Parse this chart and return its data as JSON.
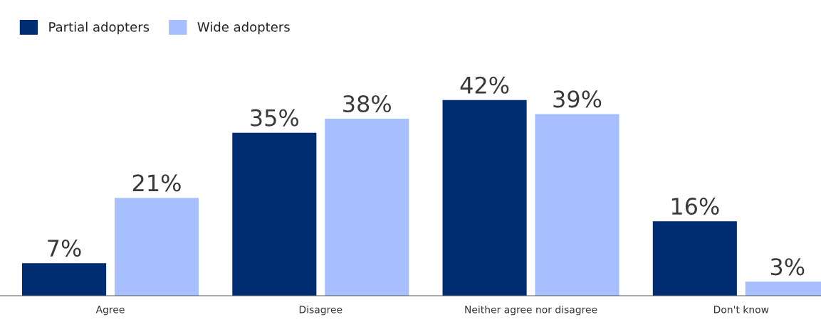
{
  "chart_data": {
    "type": "bar",
    "categories": [
      "Agree",
      "Disagree",
      "Neither agree nor disagree",
      "Don't know"
    ],
    "series": [
      {
        "name": "Partial adopters",
        "color": "#002d72",
        "values": [
          7,
          35,
          42,
          16
        ],
        "value_labels": [
          "7%",
          "35%",
          "42%",
          "16%"
        ]
      },
      {
        "name": "Wide adopters",
        "color": "#a8bfff",
        "values": [
          21,
          38,
          39,
          3
        ],
        "value_labels": [
          "21%",
          "38%",
          "39%",
          "3%"
        ]
      }
    ],
    "legend": "top left",
    "grid": false
  }
}
